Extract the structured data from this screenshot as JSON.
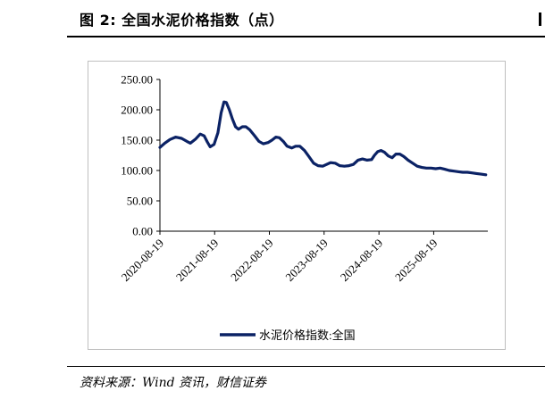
{
  "figure": {
    "title": "图 2:  全国水泥价格指数（点）",
    "source": "资料来源：Wind 资讯，财信证券"
  },
  "chart_data": {
    "type": "line",
    "title": "",
    "xlabel": "",
    "ylabel": "",
    "ylim": [
      0,
      250
    ],
    "yticks": [
      "0.00",
      "50.00",
      "100.00",
      "150.00",
      "200.00",
      "250.00"
    ],
    "xticks": [
      "2020-08-19",
      "2021-08-19",
      "2022-08-19",
      "2023-08-19",
      "2024-08-19",
      "2025-08-19"
    ],
    "xlim": [
      "2020-08-19",
      "2026-08-15"
    ],
    "grid": false,
    "legend": "bottom-center",
    "color": "#0b2265",
    "series": [
      {
        "name": "水泥价格指数:全国",
        "points": [
          [
            "2020-08-19",
            138
          ],
          [
            "2020-09-20",
            145
          ],
          [
            "2020-10-25",
            151
          ],
          [
            "2020-12-01",
            155
          ],
          [
            "2021-01-10",
            153
          ],
          [
            "2021-02-15",
            148
          ],
          [
            "2021-03-10",
            145
          ],
          [
            "2021-04-15",
            152
          ],
          [
            "2021-05-15",
            160
          ],
          [
            "2021-06-10",
            157
          ],
          [
            "2021-07-01",
            147
          ],
          [
            "2021-07-20",
            139
          ],
          [
            "2021-08-15",
            143
          ],
          [
            "2021-09-10",
            162
          ],
          [
            "2021-10-01",
            195
          ],
          [
            "2021-10-20",
            213
          ],
          [
            "2021-11-05",
            212
          ],
          [
            "2021-11-25",
            200
          ],
          [
            "2021-12-15",
            185
          ],
          [
            "2022-01-05",
            172
          ],
          [
            "2022-01-25",
            168
          ],
          [
            "2022-02-20",
            172
          ],
          [
            "2022-03-15",
            172
          ],
          [
            "2022-04-10",
            167
          ],
          [
            "2022-05-10",
            158
          ],
          [
            "2022-06-10",
            148
          ],
          [
            "2022-07-10",
            144
          ],
          [
            "2022-08-10",
            146
          ],
          [
            "2022-09-05",
            150
          ],
          [
            "2022-10-01",
            155
          ],
          [
            "2022-10-25",
            154
          ],
          [
            "2022-11-20",
            148
          ],
          [
            "2022-12-15",
            140
          ],
          [
            "2023-01-15",
            137
          ],
          [
            "2023-02-10",
            140
          ],
          [
            "2023-03-10",
            140
          ],
          [
            "2023-04-10",
            133
          ],
          [
            "2023-05-10",
            123
          ],
          [
            "2023-06-10",
            112
          ],
          [
            "2023-07-10",
            108
          ],
          [
            "2023-08-10",
            107
          ],
          [
            "2023-09-05",
            110
          ],
          [
            "2023-10-01",
            113
          ],
          [
            "2023-11-01",
            112
          ],
          [
            "2023-12-01",
            108
          ],
          [
            "2024-01-01",
            107
          ],
          [
            "2024-02-01",
            108
          ],
          [
            "2024-03-01",
            110
          ],
          [
            "2024-04-01",
            117
          ],
          [
            "2024-05-01",
            119
          ],
          [
            "2024-06-01",
            117
          ],
          [
            "2024-07-01",
            118
          ],
          [
            "2024-07-20",
            125
          ],
          [
            "2024-08-10",
            131
          ],
          [
            "2024-09-01",
            133
          ],
          [
            "2024-09-25",
            130
          ],
          [
            "2024-10-20",
            124
          ],
          [
            "2024-11-15",
            121
          ],
          [
            "2024-12-10",
            127
          ],
          [
            "2025-01-05",
            127
          ],
          [
            "2025-02-01",
            123
          ],
          [
            "2025-03-01",
            117
          ],
          [
            "2025-04-01",
            112
          ],
          [
            "2025-05-01",
            107
          ],
          [
            "2025-06-01",
            105
          ],
          [
            "2025-07-01",
            104
          ],
          [
            "2025-08-01",
            104
          ],
          [
            "2025-09-01",
            103
          ],
          [
            "2025-10-01",
            104
          ],
          [
            "2025-11-01",
            102
          ],
          [
            "2025-12-01",
            100
          ],
          [
            "2026-01-01",
            99
          ],
          [
            "2026-02-01",
            98
          ],
          [
            "2026-03-01",
            97
          ],
          [
            "2026-04-01",
            97
          ],
          [
            "2026-05-01",
            96
          ],
          [
            "2026-06-01",
            95
          ],
          [
            "2026-07-01",
            94
          ],
          [
            "2026-08-01",
            93
          ]
        ]
      }
    ]
  }
}
